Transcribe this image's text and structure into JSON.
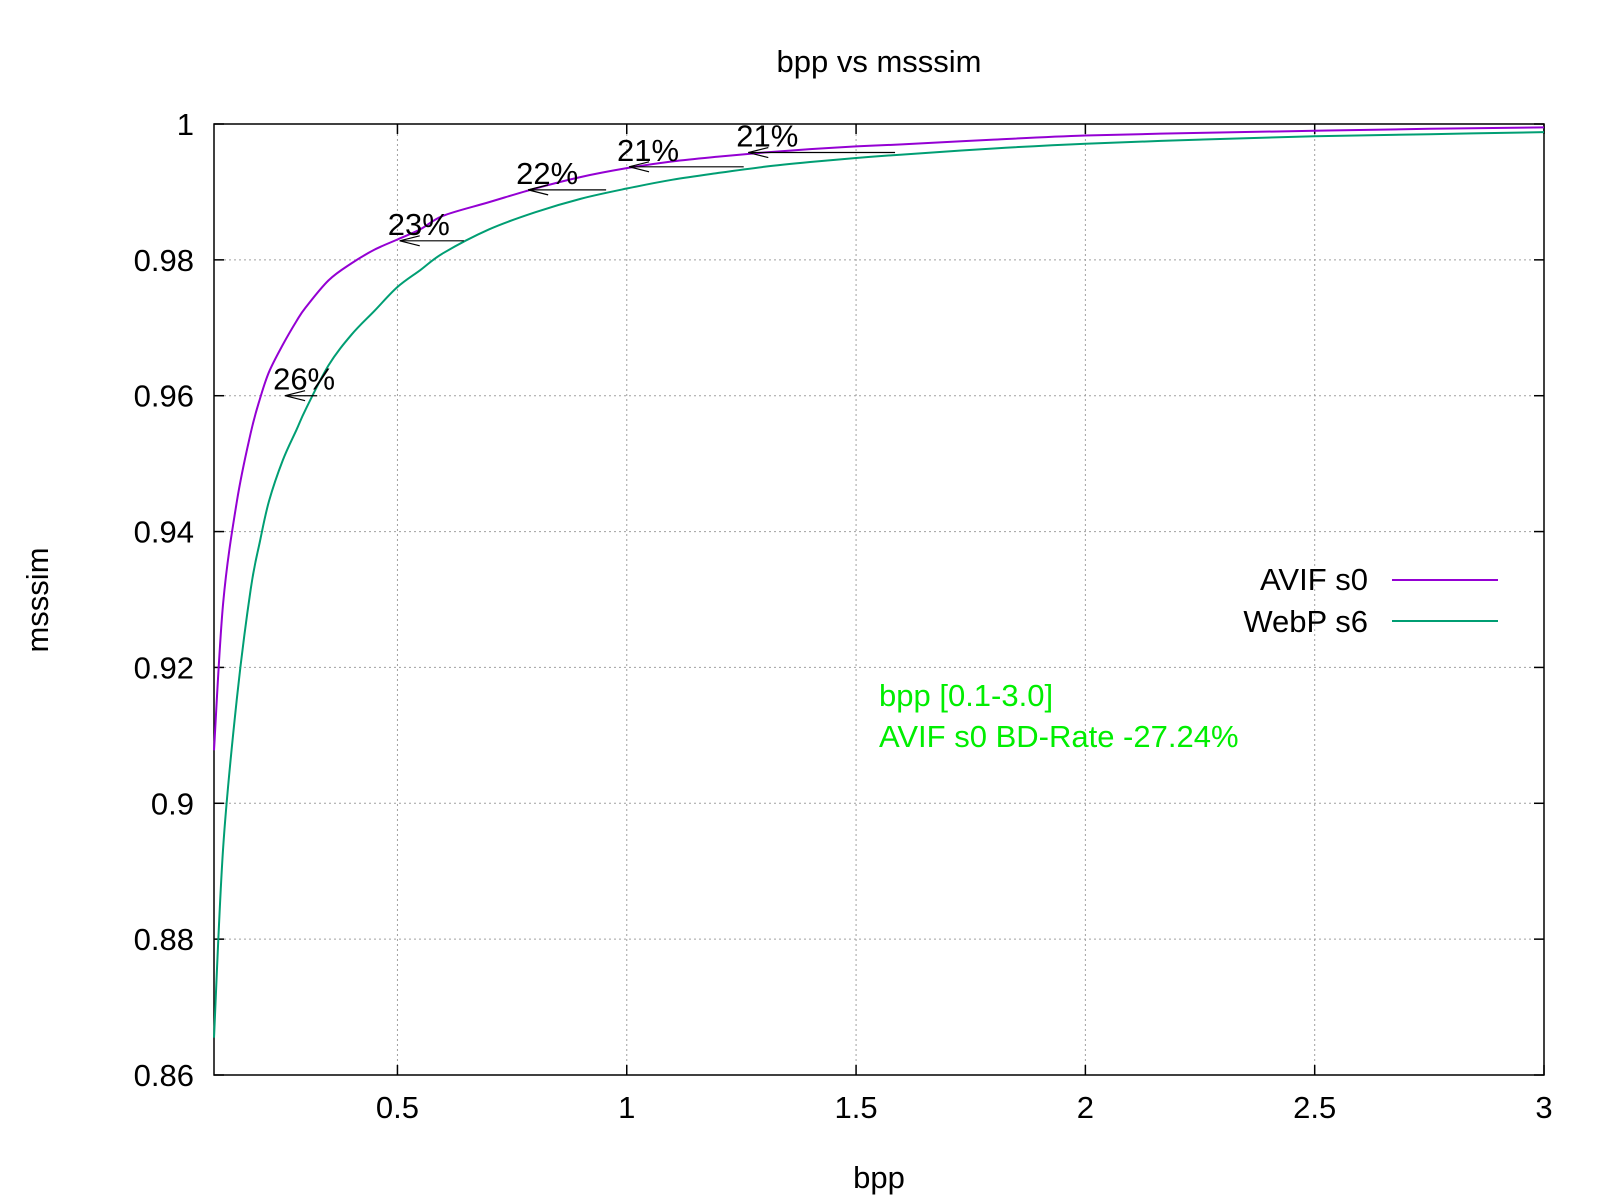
{
  "chart_data": {
    "type": "line",
    "title": "bpp vs msssim",
    "xlabel": "bpp",
    "ylabel": "msssim",
    "xlim": [
      0.1,
      3.0
    ],
    "ylim": [
      0.86,
      1.0
    ],
    "xticks": [
      0.5,
      1,
      1.5,
      2,
      2.5,
      3
    ],
    "xtick_labels": [
      "0.5",
      "1",
      "1.5",
      "2",
      "2.5",
      "3"
    ],
    "yticks": [
      0.86,
      0.88,
      0.9,
      0.92,
      0.94,
      0.96,
      0.98,
      1.0
    ],
    "ytick_labels": [
      "0.86",
      "0.88",
      "0.9",
      "0.92",
      "0.94",
      "0.96",
      "0.98",
      "1"
    ],
    "grid": true,
    "legend": "right",
    "series": [
      {
        "name": "AVIF s0",
        "color": "#9400d3",
        "x": [
          0.1,
          0.12,
          0.15,
          0.18,
          0.2,
          0.22,
          0.25,
          0.28,
          0.3,
          0.35,
          0.4,
          0.45,
          0.5,
          0.55,
          0.6,
          0.7,
          0.8,
          0.9,
          1.0,
          1.1,
          1.2,
          1.3,
          1.4,
          1.5,
          1.6,
          1.8,
          2.0,
          2.25,
          2.5,
          2.75,
          3.0
        ],
        "y": [
          0.9078,
          0.9295,
          0.9445,
          0.9545,
          0.9595,
          0.9635,
          0.9675,
          0.971,
          0.973,
          0.977,
          0.9795,
          0.9815,
          0.983,
          0.9845,
          0.9865,
          0.9885,
          0.9905,
          0.9922,
          0.9935,
          0.9945,
          0.9952,
          0.9958,
          0.9963,
          0.9967,
          0.997,
          0.9977,
          0.9983,
          0.9987,
          0.999,
          0.9993,
          0.9995
        ]
      },
      {
        "name": "WebP s6",
        "color": "#009e73",
        "x": [
          0.1,
          0.12,
          0.15,
          0.18,
          0.2,
          0.22,
          0.25,
          0.28,
          0.3,
          0.35,
          0.4,
          0.45,
          0.5,
          0.55,
          0.6,
          0.7,
          0.8,
          0.9,
          1.0,
          1.1,
          1.2,
          1.3,
          1.4,
          1.5,
          1.6,
          1.8,
          2.0,
          2.25,
          2.5,
          2.75,
          3.0
        ],
        "y": [
          0.8655,
          0.8935,
          0.9155,
          0.9315,
          0.9385,
          0.9445,
          0.9505,
          0.955,
          0.958,
          0.9645,
          0.969,
          0.9725,
          0.976,
          0.9785,
          0.981,
          0.9845,
          0.987,
          0.989,
          0.9905,
          0.9918,
          0.9928,
          0.9937,
          0.9944,
          0.995,
          0.9955,
          0.9964,
          0.9971,
          0.9977,
          0.9982,
          0.9985,
          0.9988
        ]
      }
    ],
    "annotations": [
      {
        "label": "26%",
        "y": 0.96,
        "x_from": 0.325,
        "x_to": 0.255
      },
      {
        "label": "23%",
        "y": 0.9828,
        "x_from": 0.645,
        "x_to": 0.505
      },
      {
        "label": "22%",
        "y": 0.9903,
        "x_from": 0.955,
        "x_to": 0.785
      },
      {
        "label": "21%",
        "y": 0.9937,
        "x_from": 1.255,
        "x_to": 1.005
      },
      {
        "label": "21%",
        "y": 0.9958,
        "x_from": 1.585,
        "x_to": 1.265
      }
    ],
    "notes": {
      "color": "#00ee00",
      "lines": [
        "bpp [0.1-3.0]",
        "AVIF s0 BD-Rate -27.24%"
      ]
    }
  }
}
